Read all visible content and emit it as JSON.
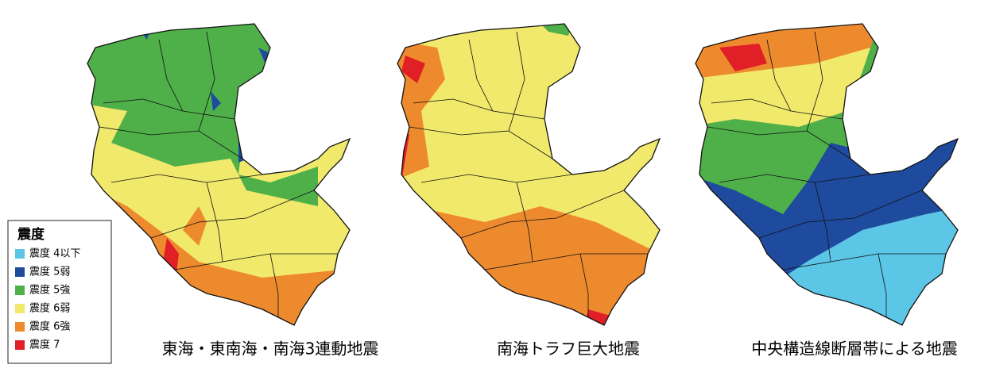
{
  "maps": [
    {
      "caption": "東海・東南海・南海3連動地震"
    },
    {
      "caption": "南海トラフ巨大地震"
    },
    {
      "caption": "中央構造線断層帯による地震"
    }
  ],
  "legend": {
    "title": "震度",
    "items": [
      {
        "label": "震度 4以下",
        "color": "#5cc6e6"
      },
      {
        "label": "震度 5弱",
        "color": "#1f4b9e"
      },
      {
        "label": "震度 5強",
        "color": "#4fb04a"
      },
      {
        "label": "震度 6弱",
        "color": "#f1e96b"
      },
      {
        "label": "震度 6強",
        "color": "#ee8a2e"
      },
      {
        "label": "震度 7",
        "color": "#e01f26"
      }
    ]
  }
}
